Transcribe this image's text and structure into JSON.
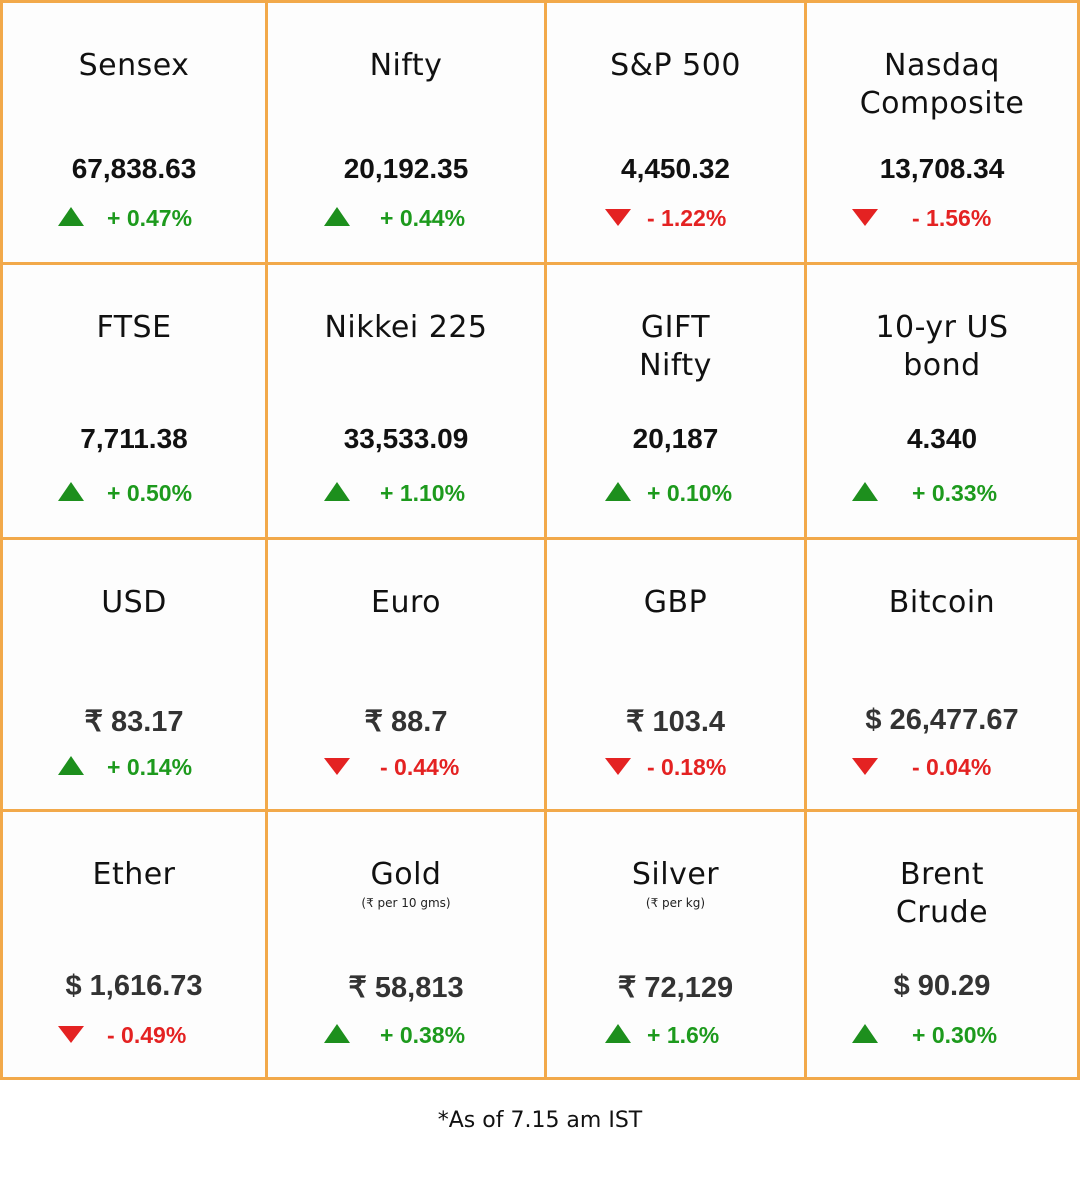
{
  "colors": {
    "border": "#f2a94a",
    "up": "#1d9a1d",
    "down": "#e42222"
  },
  "tiles": [
    {
      "name": "Sensex",
      "sub": "",
      "value": "67,838.63",
      "change": "+ 0.47%",
      "direction": "up",
      "arrow_icon": "triangle-up-icon"
    },
    {
      "name": "Nifty",
      "sub": "",
      "value": "20,192.35",
      "change": "+ 0.44%",
      "direction": "up",
      "arrow_icon": "triangle-up-icon"
    },
    {
      "name": "S&P 500",
      "sub": "",
      "value": "4,450.32",
      "change": "- 1.22%",
      "direction": "down",
      "arrow_icon": "triangle-down-icon"
    },
    {
      "name": "Nasdaq\nComposite",
      "sub": "",
      "value": "13,708.34",
      "change": "- 1.56%",
      "direction": "down",
      "arrow_icon": "triangle-down-icon"
    },
    {
      "name": "FTSE",
      "sub": "",
      "value": "7,711.38",
      "change": "+ 0.50%",
      "direction": "up",
      "arrow_icon": "triangle-up-icon"
    },
    {
      "name": "Nikkei 225",
      "sub": "",
      "value": "33,533.09",
      "change": "+ 1.10%",
      "direction": "up",
      "arrow_icon": "triangle-up-icon"
    },
    {
      "name": "GIFT\nNifty",
      "sub": "",
      "value": "20,187",
      "change": "+ 0.10%",
      "direction": "up",
      "arrow_icon": "triangle-up-icon"
    },
    {
      "name": "10-yr US\nbond",
      "sub": "",
      "value": "4.340",
      "change": "+ 0.33%",
      "direction": "up",
      "arrow_icon": "triangle-up-icon"
    },
    {
      "name": "USD",
      "sub": "",
      "value": "₹ 83.17",
      "change": "+ 0.14%",
      "direction": "up",
      "arrow_icon": "triangle-up-icon"
    },
    {
      "name": "Euro",
      "sub": "",
      "value": "₹ 88.7",
      "change": "- 0.44%",
      "direction": "down",
      "arrow_icon": "triangle-down-icon"
    },
    {
      "name": "GBP",
      "sub": "",
      "value": "₹ 103.4",
      "change": "- 0.18%",
      "direction": "down",
      "arrow_icon": "triangle-down-icon"
    },
    {
      "name": "Bitcoin",
      "sub": "",
      "value": "$ 26,477.67",
      "change": "- 0.04%",
      "direction": "down",
      "arrow_icon": "triangle-down-icon"
    },
    {
      "name": "Ether",
      "sub": "",
      "value": "$ 1,616.73",
      "change": "- 0.49%",
      "direction": "down",
      "arrow_icon": "triangle-down-icon"
    },
    {
      "name": "Gold",
      "sub": "(₹ per 10 gms)",
      "value": "₹ 58,813",
      "change": "+ 0.38%",
      "direction": "up",
      "arrow_icon": "triangle-up-icon"
    },
    {
      "name": "Silver",
      "sub": "(₹ per kg)",
      "value": "₹ 72,129",
      "change": "+ 1.6%",
      "direction": "up",
      "arrow_icon": "triangle-up-icon"
    },
    {
      "name": "Brent\nCrude",
      "sub": "",
      "value": "$ 90.29",
      "change": "+ 0.30%",
      "direction": "up",
      "arrow_icon": "triangle-up-icon"
    }
  ],
  "footnote": "*As of 7.15 am IST"
}
